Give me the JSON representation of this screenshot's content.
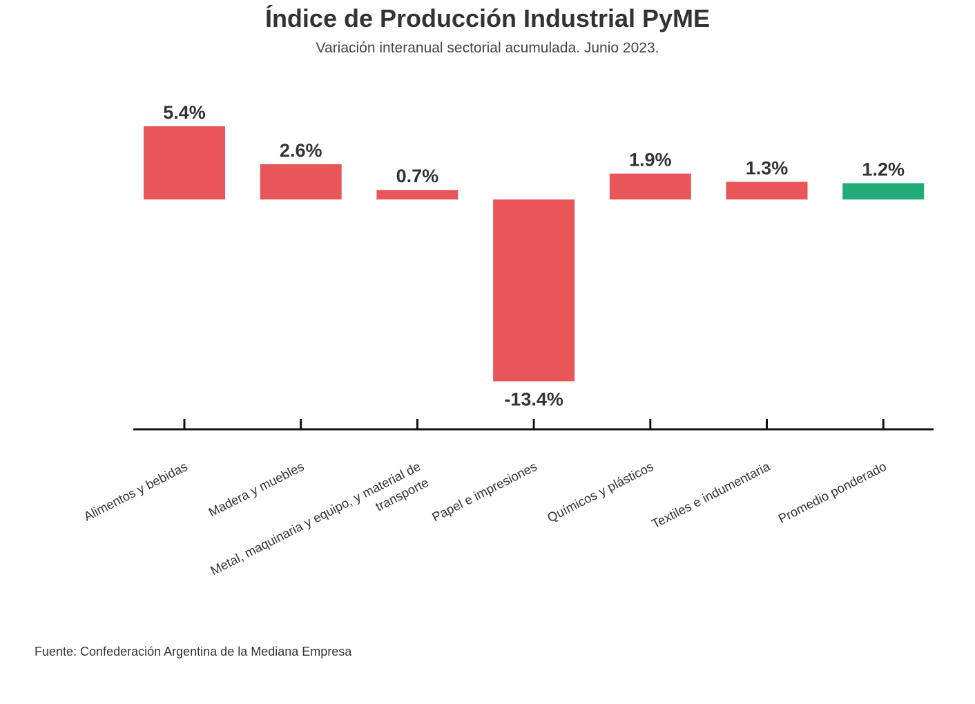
{
  "header": {
    "title": "Índice de Producción Industrial PyME",
    "subtitle": "Variación interanual sectorial acumulada. Junio 2023."
  },
  "footer": {
    "source": "Fuente: Confederación Argentina de la Mediana Empresa"
  },
  "chart_data": {
    "type": "bar",
    "title": "Índice de Producción Industrial PyME",
    "subtitle": "Variación interanual sectorial acumulada. Junio 2023.",
    "xlabel": "",
    "ylabel": "",
    "ylim": [
      -15,
      6
    ],
    "grid": false,
    "categories": [
      "Alimentos y bebidas",
      "Madera y muebles",
      "Metal, maquinaria y equipo, y material de transporte",
      "Papel e impresiones",
      "Químicos y plásticos",
      "Textiles e indumentaria",
      "Promedio ponderado"
    ],
    "category_label_lines": [
      [
        "Alimentos y bebidas"
      ],
      [
        "Madera y muebles"
      ],
      [
        "Metal, maquinaria y equipo, y material de",
        "transporte"
      ],
      [
        "Papel e impresiones"
      ],
      [
        "Químicos y plásticos"
      ],
      [
        "Textiles e indumentaria"
      ],
      [
        "Promedio ponderado"
      ]
    ],
    "values": [
      5.4,
      2.6,
      0.7,
      -13.4,
      1.9,
      1.3,
      1.2
    ],
    "data_labels": [
      "5.4%",
      "2.6%",
      "0.7%",
      "-13.4%",
      "1.9%",
      "1.3%",
      "1.2%"
    ],
    "colors": [
      "#e8565a",
      "#e8565a",
      "#e8565a",
      "#e8565a",
      "#e8565a",
      "#e8565a",
      "#22ac78"
    ],
    "axis_color": "#111111",
    "label_color": "#333333"
  }
}
